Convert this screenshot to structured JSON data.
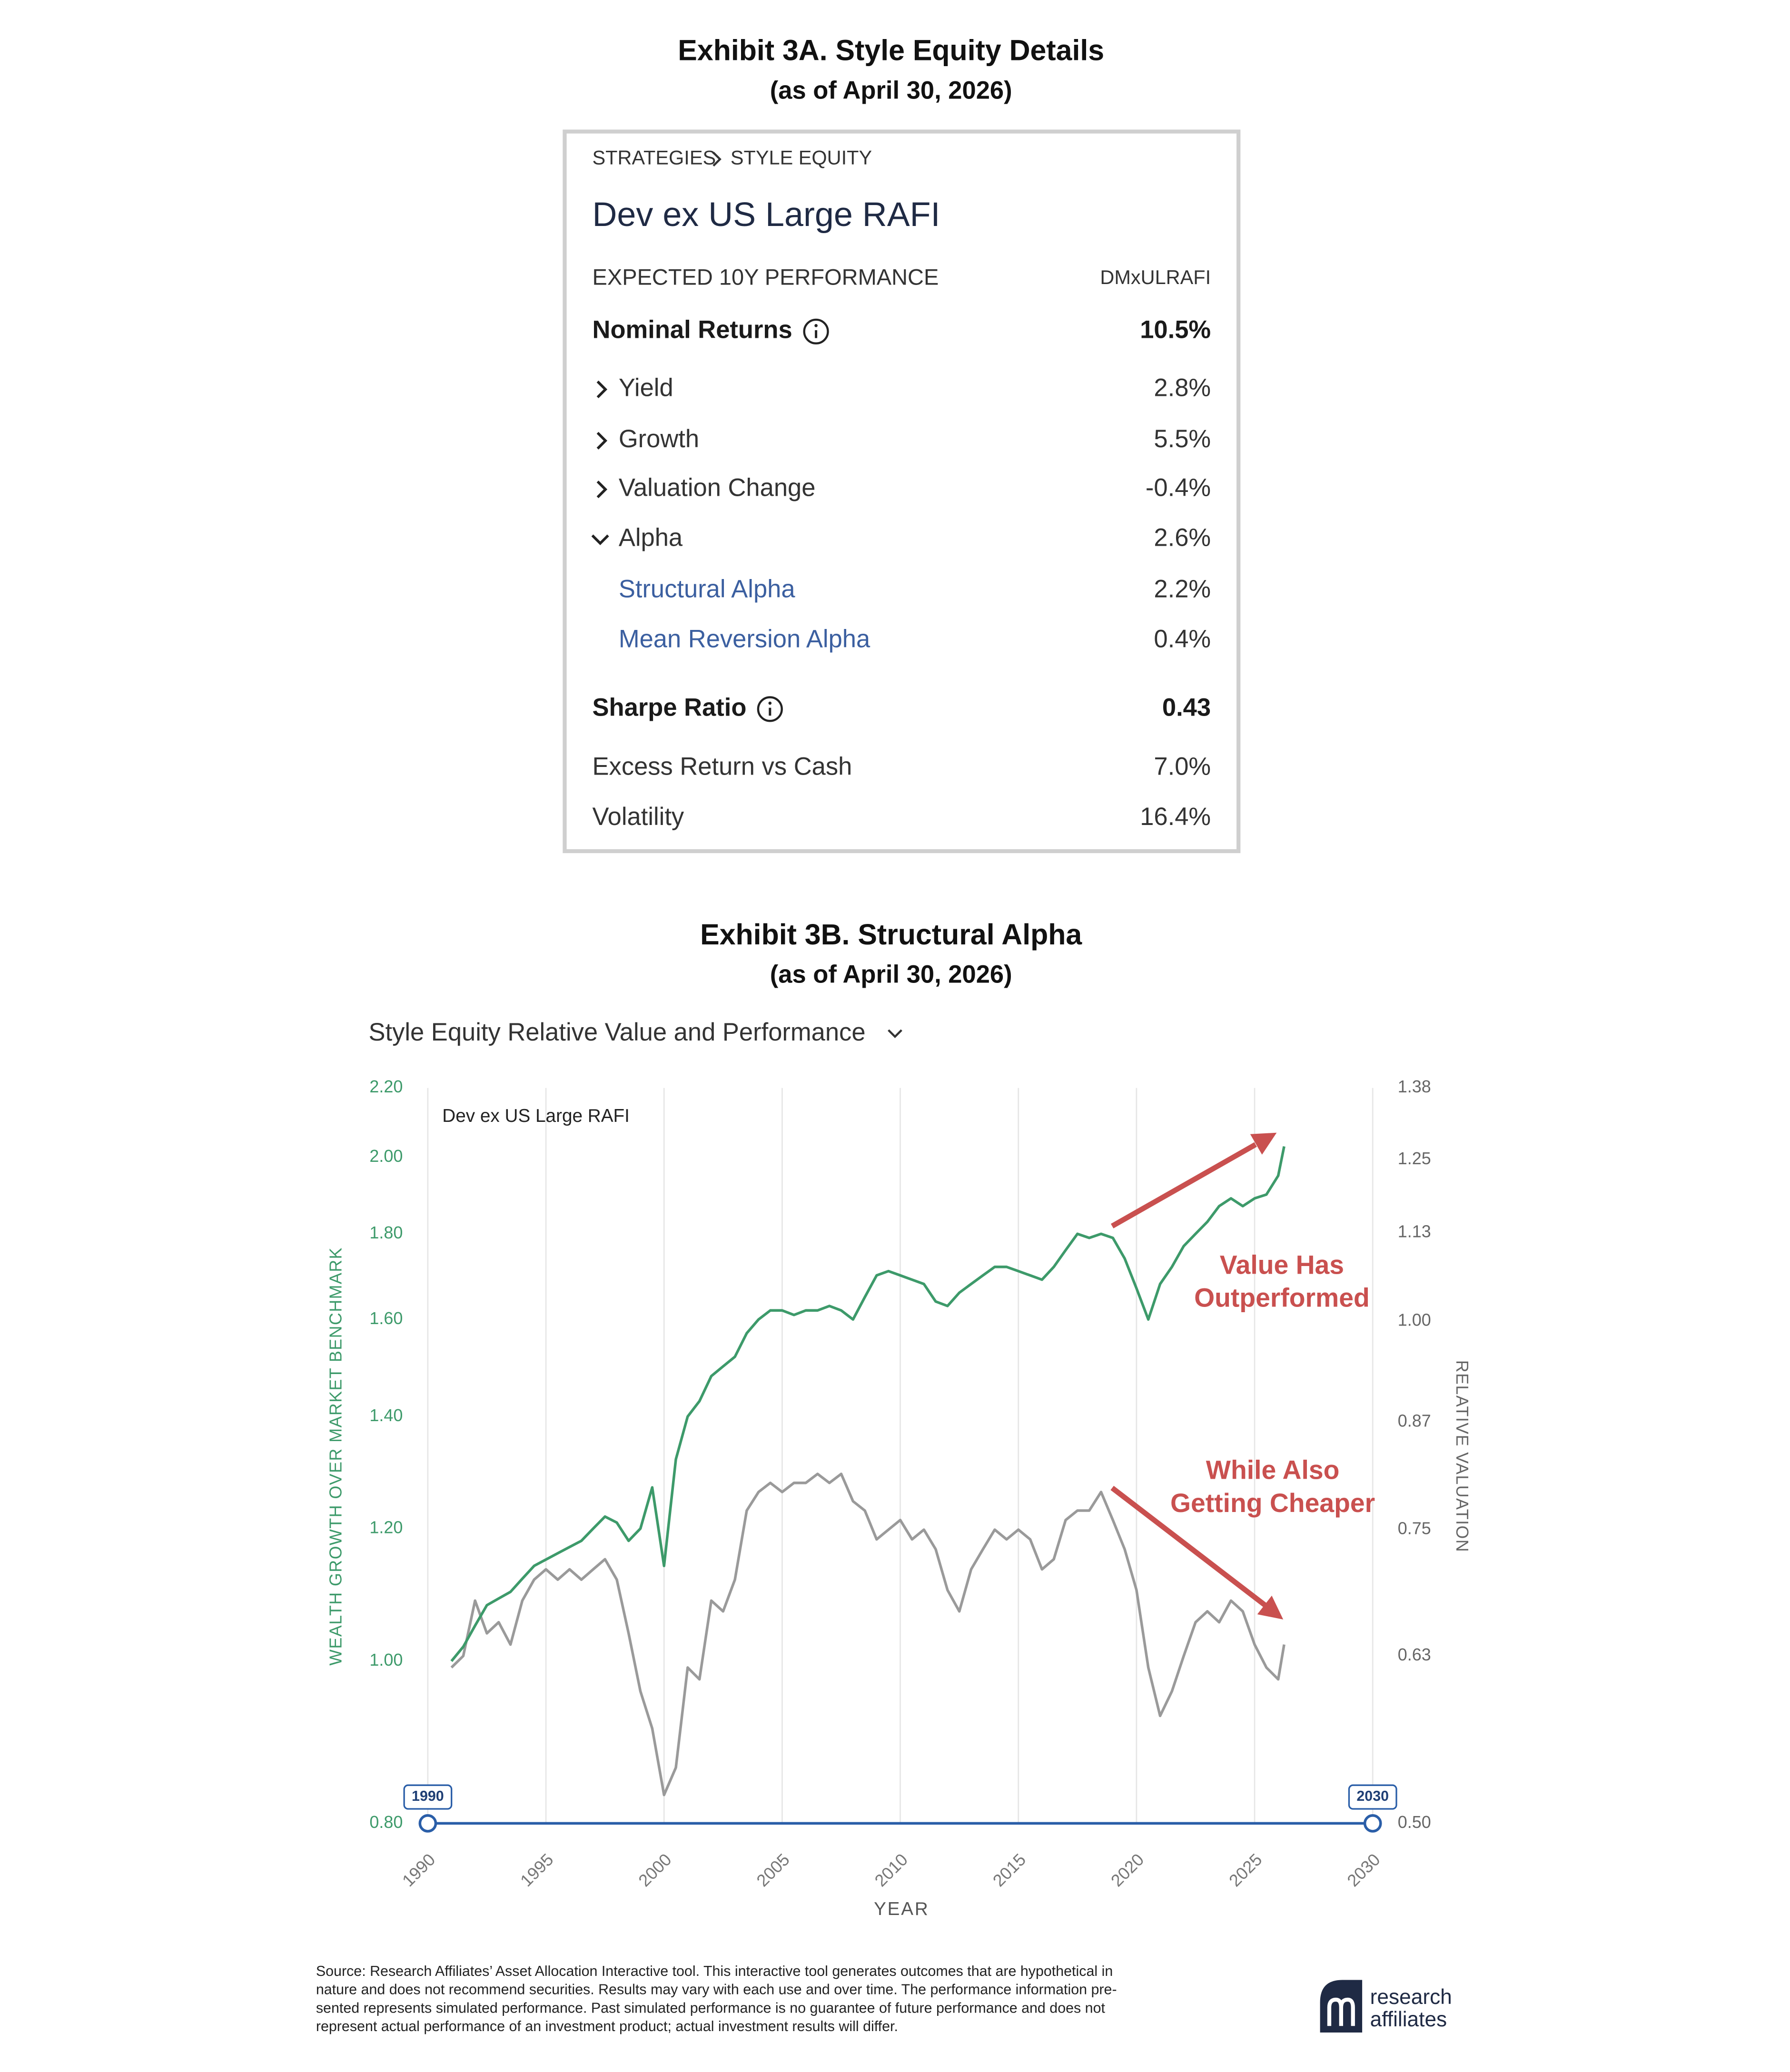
{
  "exhibit_a": {
    "title": "Exhibit 3A. Style Equity Details",
    "subtitle": "(as of April 30, 2026)",
    "breadcrumb": [
      "STRATEGIES",
      "STYLE EQUITY"
    ],
    "fund": "Dev ex US Large RAFI",
    "header": [
      "EXPECTED 10Y PERFORMANCE",
      "DMxULRAFI"
    ],
    "rows": [
      {
        "label": "Nominal Returns",
        "value": "10.5%"
      },
      {
        "label": "Yield",
        "value": "2.8%"
      },
      {
        "label": "Growth",
        "value": "5.5%"
      },
      {
        "label": "Valuation Change",
        "value": "-0.4%"
      },
      {
        "label": "Alpha",
        "value": "2.6%"
      },
      {
        "label": "Structural Alpha",
        "value": "2.2%"
      },
      {
        "label": "Mean Reversion Alpha",
        "value": "0.4%"
      },
      {
        "label": "Sharpe Ratio",
        "value": "0.43"
      },
      {
        "label": "Excess Return vs Cash",
        "value": "7.0%"
      },
      {
        "label": "Volatility",
        "value": "16.4%"
      }
    ]
  },
  "chart_data": {
    "type": "line",
    "exhibit_title": "Exhibit 3B. Structural Alpha",
    "exhibit_subtitle": "(as of April 30, 2026)",
    "title": "Style Equity Relative Value and Performance",
    "panel_label": "Dev ex US Large RAFI",
    "xlabel": "YEAR",
    "ylabel": "WEALTH GROWTH OVER MARKET BENCHMARK",
    "y2label": "RELATIVE VALUATION",
    "log_scale": true,
    "grid": "x",
    "xlim": [
      1990,
      2030
    ],
    "xticks": [
      1990,
      1995,
      2000,
      2005,
      2010,
      2015,
      2020,
      2025,
      2030
    ],
    "range": [
      1990,
      2030
    ],
    "ylim": [
      0.8,
      2.2
    ],
    "yticks": [
      {
        "value": 0.8,
        "label": "0.80"
      },
      {
        "value": 1.0,
        "label": "1.00"
      },
      {
        "value": 1.2,
        "label": "1.20"
      },
      {
        "value": 1.4,
        "label": "1.40"
      },
      {
        "value": 1.6,
        "label": "1.60"
      },
      {
        "value": 1.8,
        "label": "1.80"
      },
      {
        "value": 2.0,
        "label": "2.00"
      },
      {
        "value": 2.2,
        "label": "2.20"
      }
    ],
    "y2lim": [
      0.5,
      1.38
    ],
    "y2ticks": [
      {
        "value": 0.5,
        "label": "0.50"
      },
      0.63,
      0.75,
      0.87,
      {
        "value": 1.0,
        "label": "1.00"
      },
      1.13,
      1.25,
      1.38
    ],
    "ycolor": "#3d9a6a",
    "y2color": "#666666",
    "x": [
      1991,
      1991.5,
      1992,
      1992.5,
      1993,
      1993.5,
      1994,
      1994.5,
      1995,
      1995.5,
      1996,
      1996.5,
      1997,
      1997.5,
      1998,
      1998.5,
      1999,
      1999.5,
      2000,
      2000.5,
      2001,
      2001.5,
      2002,
      2002.5,
      2003,
      2003.5,
      2004,
      2004.5,
      2005,
      2005.5,
      2006,
      2006.5,
      2007,
      2007.5,
      2008,
      2008.5,
      2009,
      2009.5,
      2010,
      2010.5,
      2011,
      2011.5,
      2012,
      2012.5,
      2013,
      2013.5,
      2014,
      2014.5,
      2015,
      2015.5,
      2016,
      2016.5,
      2017,
      2017.5,
      2018,
      2018.5,
      2019,
      2019.5,
      2020,
      2020.5,
      2021,
      2021.5,
      2022,
      2022.5,
      2023,
      2023.5,
      2024,
      2024.5,
      2025,
      2025.5,
      2026,
      2026.25
    ],
    "series": [
      {
        "color": "#3d9a6a",
        "values": [
          1.0,
          1.02,
          1.05,
          1.08,
          1.09,
          1.1,
          1.12,
          1.14,
          1.15,
          1.16,
          1.17,
          1.18,
          1.2,
          1.22,
          1.21,
          1.18,
          1.2,
          1.27,
          1.14,
          1.32,
          1.4,
          1.43,
          1.48,
          1.5,
          1.52,
          1.57,
          1.6,
          1.62,
          1.62,
          1.61,
          1.62,
          1.62,
          1.63,
          1.62,
          1.6,
          1.65,
          1.7,
          1.71,
          1.7,
          1.69,
          1.68,
          1.64,
          1.63,
          1.66,
          1.68,
          1.7,
          1.72,
          1.72,
          1.71,
          1.7,
          1.69,
          1.72,
          1.76,
          1.8,
          1.79,
          1.8,
          1.79,
          1.74,
          1.67,
          1.6,
          1.68,
          1.72,
          1.77,
          1.8,
          1.83,
          1.87,
          1.89,
          1.87,
          1.89,
          1.9,
          1.95,
          2.03
        ]
      },
      {
        "color": "#9a9a9a",
        "axis": "y2",
        "values": [
          0.62,
          0.63,
          0.68,
          0.65,
          0.66,
          0.64,
          0.68,
          0.7,
          0.71,
          0.7,
          0.71,
          0.7,
          0.71,
          0.72,
          0.7,
          0.65,
          0.6,
          0.57,
          0.52,
          0.54,
          0.62,
          0.61,
          0.68,
          0.67,
          0.7,
          0.77,
          0.79,
          0.8,
          0.79,
          0.8,
          0.8,
          0.81,
          0.8,
          0.81,
          0.78,
          0.77,
          0.74,
          0.75,
          0.76,
          0.74,
          0.75,
          0.73,
          0.69,
          0.67,
          0.71,
          0.73,
          0.75,
          0.74,
          0.75,
          0.74,
          0.71,
          0.72,
          0.76,
          0.77,
          0.77,
          0.79,
          0.76,
          0.73,
          0.69,
          0.62,
          0.58,
          0.6,
          0.63,
          0.66,
          0.67,
          0.66,
          0.68,
          0.67,
          0.64,
          0.62,
          0.61,
          0.64
        ]
      }
    ],
    "annotations": [
      {
        "lines": [
          "Value Has",
          "Outperformed"
        ],
        "color": "#c9504f"
      },
      {
        "lines": [
          "While Also",
          "Getting Cheaper"
        ],
        "color": "#c9504f"
      }
    ]
  },
  "footer": {
    "source": [
      "Source: Research Affiliates’ Asset Allocation Interactive tool. This interactive tool generates outcomes that are hypothetical in",
      "nature and does not recommend securities. Results may vary with each use and over time. The performance information pre-",
      "sented represents simulated performance. Past simulated performance is no guarantee of future performance and does not",
      "represent actual performance of an investment product; actual investment results will differ."
    ],
    "logo": [
      "research",
      "affiliates"
    ]
  }
}
